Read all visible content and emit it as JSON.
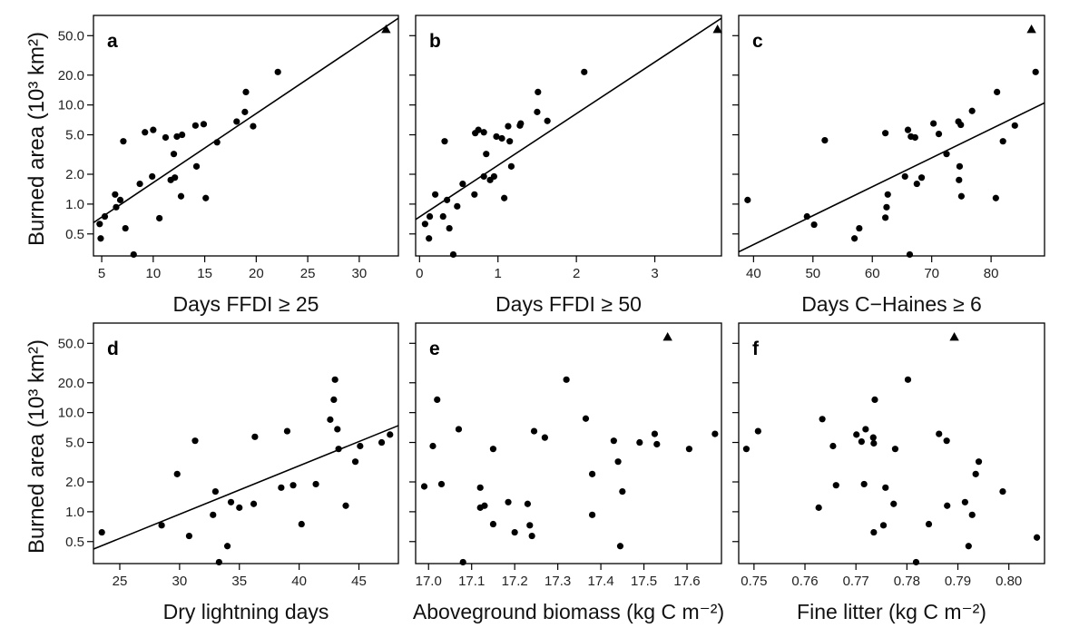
{
  "figure": {
    "y_axis_label": "Burned area (10³ km²)",
    "y_scale": "log",
    "y_ticks": [
      0.5,
      1.0,
      2.0,
      5.0,
      10.0,
      20.0,
      50.0
    ],
    "y_tick_labels": [
      "0.5",
      "1.0",
      "2.0",
      "5.0",
      "10.0",
      "20.0",
      "50.0"
    ]
  },
  "chart_data": [
    {
      "panel": "a",
      "type": "scatter",
      "xlabel": "Days FFDI ≥ 25",
      "xlim": [
        4.2,
        33.8
      ],
      "ylim": [
        0.3,
        80
      ],
      "xticks": [
        5,
        10,
        15,
        20,
        25,
        30
      ],
      "xtick_labels": [
        "5",
        "10",
        "15",
        "20",
        "25",
        "30"
      ],
      "regression": [
        [
          4.2,
          0.65
        ],
        [
          33.8,
          75
        ]
      ],
      "outlier": [
        32.6,
        58
      ],
      "points": [
        [
          4.8,
          0.63
        ],
        [
          4.9,
          0.45
        ],
        [
          5.3,
          0.75
        ],
        [
          6.3,
          1.25
        ],
        [
          6.4,
          0.93
        ],
        [
          6.8,
          1.1
        ],
        [
          7.1,
          4.3
        ],
        [
          7.3,
          0.57
        ],
        [
          8.1,
          0.31
        ],
        [
          8.7,
          1.6
        ],
        [
          9.2,
          5.3
        ],
        [
          9.9,
          1.9
        ],
        [
          10.0,
          5.6
        ],
        [
          10.6,
          0.72
        ],
        [
          11.2,
          4.7
        ],
        [
          11.7,
          1.75
        ],
        [
          12.1,
          1.85
        ],
        [
          12.0,
          3.2
        ],
        [
          12.3,
          4.8
        ],
        [
          12.7,
          1.2
        ],
        [
          12.8,
          5.0
        ],
        [
          14.1,
          6.2
        ],
        [
          14.2,
          2.4
        ],
        [
          14.9,
          6.4
        ],
        [
          15.1,
          1.15
        ],
        [
          16.2,
          4.2
        ],
        [
          18.1,
          6.8
        ],
        [
          18.9,
          8.5
        ],
        [
          19.0,
          13.5
        ],
        [
          19.7,
          6.1
        ],
        [
          22.1,
          21.5
        ]
      ]
    },
    {
      "panel": "b",
      "type": "scatter",
      "xlabel": "Days FFDI ≥ 50",
      "xlim": [
        -0.05,
        3.85
      ],
      "ylim": [
        0.3,
        80
      ],
      "xticks": [
        0,
        1,
        2,
        3
      ],
      "xtick_labels": [
        "0",
        "1",
        "2",
        "3"
      ],
      "regression": [
        [
          -0.05,
          0.7
        ],
        [
          3.85,
          75
        ]
      ],
      "outlier": [
        3.8,
        58
      ],
      "points": [
        [
          0.07,
          0.63
        ],
        [
          0.12,
          0.45
        ],
        [
          0.13,
          0.75
        ],
        [
          0.2,
          1.25
        ],
        [
          0.3,
          0.75
        ],
        [
          0.32,
          4.3
        ],
        [
          0.35,
          1.1
        ],
        [
          0.38,
          0.57
        ],
        [
          0.43,
          0.31
        ],
        [
          0.48,
          0.95
        ],
        [
          0.55,
          1.6
        ],
        [
          0.7,
          1.25
        ],
        [
          0.71,
          5.2
        ],
        [
          0.75,
          5.6
        ],
        [
          0.82,
          5.3
        ],
        [
          0.82,
          1.9
        ],
        [
          0.85,
          3.2
        ],
        [
          0.9,
          1.75
        ],
        [
          0.95,
          1.9
        ],
        [
          0.98,
          4.8
        ],
        [
          1.05,
          4.6
        ],
        [
          1.08,
          1.15
        ],
        [
          1.13,
          6.1
        ],
        [
          1.15,
          4.3
        ],
        [
          1.17,
          2.4
        ],
        [
          1.28,
          6.2
        ],
        [
          1.29,
          6.5
        ],
        [
          1.5,
          8.5
        ],
        [
          1.51,
          13.5
        ],
        [
          1.63,
          6.9
        ],
        [
          2.1,
          21.5
        ]
      ]
    },
    {
      "panel": "c",
      "type": "scatter",
      "xlabel": "Days C−Haines ≥ 6",
      "xlim": [
        37.5,
        89
      ],
      "ylim": [
        0.3,
        80
      ],
      "xticks": [
        40,
        50,
        60,
        70,
        80
      ],
      "xtick_labels": [
        "40",
        "50",
        "60",
        "70",
        "80"
      ],
      "regression": [
        [
          37.5,
          0.33
        ],
        [
          89,
          10.5
        ]
      ],
      "outlier": [
        86.8,
        58
      ],
      "points": [
        [
          39.0,
          1.1
        ],
        [
          49.0,
          0.75
        ],
        [
          50.2,
          0.62
        ],
        [
          52.0,
          4.4
        ],
        [
          57.0,
          0.45
        ],
        [
          57.8,
          0.57
        ],
        [
          62.2,
          5.2
        ],
        [
          62.2,
          0.73
        ],
        [
          62.4,
          0.93
        ],
        [
          62.6,
          1.25
        ],
        [
          65.5,
          1.9
        ],
        [
          66.0,
          5.6
        ],
        [
          66.3,
          0.31
        ],
        [
          66.5,
          4.8
        ],
        [
          67.2,
          4.7
        ],
        [
          67.5,
          1.6
        ],
        [
          68.3,
          1.85
        ],
        [
          70.3,
          6.5
        ],
        [
          71.2,
          5.1
        ],
        [
          72.5,
          3.2
        ],
        [
          74.7,
          2.4
        ],
        [
          74.5,
          6.8
        ],
        [
          74.6,
          1.75
        ],
        [
          74.9,
          6.3
        ],
        [
          75.0,
          1.2
        ],
        [
          76.8,
          8.7
        ],
        [
          80.8,
          1.15
        ],
        [
          81.0,
          13.5
        ],
        [
          82.0,
          4.3
        ],
        [
          84.0,
          6.2
        ],
        [
          87.5,
          21.5
        ]
      ]
    },
    {
      "panel": "d",
      "type": "scatter",
      "xlabel": "Dry lightning days",
      "xlim": [
        22.8,
        48.3
      ],
      "ylim": [
        0.3,
        80
      ],
      "xticks": [
        25,
        30,
        35,
        40,
        45
      ],
      "xtick_labels": [
        "25",
        "30",
        "35",
        "40",
        "45"
      ],
      "regression": [
        [
          22.8,
          0.42
        ],
        [
          48.3,
          7.4
        ]
      ],
      "outlier": null,
      "points": [
        [
          23.5,
          0.62
        ],
        [
          28.5,
          0.73
        ],
        [
          29.8,
          2.4
        ],
        [
          30.8,
          0.57
        ],
        [
          31.3,
          5.2
        ],
        [
          32.8,
          0.93
        ],
        [
          33.0,
          1.6
        ],
        [
          33.3,
          0.31
        ],
        [
          34.0,
          0.45
        ],
        [
          34.3,
          1.25
        ],
        [
          35.0,
          1.1
        ],
        [
          36.2,
          1.2
        ],
        [
          36.3,
          5.7
        ],
        [
          38.5,
          1.75
        ],
        [
          39.0,
          6.5
        ],
        [
          39.5,
          1.85
        ],
        [
          40.2,
          0.75
        ],
        [
          41.4,
          1.9
        ],
        [
          42.6,
          8.5
        ],
        [
          42.9,
          13.5
        ],
        [
          43.0,
          21.5
        ],
        [
          43.2,
          6.8
        ],
        [
          43.3,
          4.3
        ],
        [
          43.9,
          1.15
        ],
        [
          44.7,
          3.2
        ],
        [
          45.1,
          4.6
        ],
        [
          46.9,
          5.0
        ],
        [
          47.6,
          6.0
        ]
      ]
    },
    {
      "panel": "e",
      "type": "scatter",
      "xlabel": "Aboveground biomass (kg C m⁻²)",
      "xlim": [
        16.97,
        17.68
      ],
      "ylim": [
        0.3,
        80
      ],
      "xticks": [
        17.0,
        17.1,
        17.2,
        17.3,
        17.4,
        17.5,
        17.6
      ],
      "xtick_labels": [
        "17.0",
        "17.1",
        "17.2",
        "17.3",
        "17.4",
        "17.5",
        "17.6"
      ],
      "regression": null,
      "outlier": [
        17.555,
        58
      ],
      "points": [
        [
          16.99,
          1.8
        ],
        [
          17.01,
          4.6
        ],
        [
          17.02,
          13.5
        ],
        [
          17.03,
          1.9
        ],
        [
          17.07,
          6.8
        ],
        [
          17.08,
          0.31
        ],
        [
          17.12,
          1.75
        ],
        [
          17.12,
          1.1
        ],
        [
          17.13,
          1.15
        ],
        [
          17.15,
          4.3
        ],
        [
          17.15,
          0.75
        ],
        [
          17.185,
          1.25
        ],
        [
          17.2,
          0.62
        ],
        [
          17.23,
          1.2
        ],
        [
          17.235,
          0.73
        ],
        [
          17.24,
          0.57
        ],
        [
          17.245,
          6.5
        ],
        [
          17.27,
          5.6
        ],
        [
          17.32,
          21.5
        ],
        [
          17.365,
          8.7
        ],
        [
          17.38,
          2.4
        ],
        [
          17.38,
          0.93
        ],
        [
          17.43,
          5.2
        ],
        [
          17.44,
          3.2
        ],
        [
          17.445,
          0.45
        ],
        [
          17.45,
          1.6
        ],
        [
          17.49,
          5.0
        ],
        [
          17.525,
          6.1
        ],
        [
          17.53,
          4.8
        ],
        [
          17.605,
          4.3
        ],
        [
          17.665,
          6.1
        ]
      ]
    },
    {
      "panel": "f",
      "type": "scatter",
      "xlabel": "Fine litter (kg C m⁻²)",
      "xlim": [
        0.747,
        0.807
      ],
      "ylim": [
        0.3,
        80
      ],
      "xticks": [
        0.75,
        0.76,
        0.77,
        0.78,
        0.79,
        0.8
      ],
      "xtick_labels": [
        "0.75",
        "0.76",
        "0.77",
        "0.78",
        "0.79",
        "0.80"
      ],
      "regression": null,
      "outlier": [
        0.7893,
        58
      ],
      "points": [
        [
          0.7485,
          4.3
        ],
        [
          0.7508,
          6.5
        ],
        [
          0.7627,
          1.1
        ],
        [
          0.7634,
          8.6
        ],
        [
          0.7655,
          4.6
        ],
        [
          0.7661,
          1.85
        ],
        [
          0.7701,
          6.0
        ],
        [
          0.7711,
          5.1
        ],
        [
          0.7716,
          1.9
        ],
        [
          0.7719,
          6.8
        ],
        [
          0.7735,
          0.62
        ],
        [
          0.7734,
          5.6
        ],
        [
          0.7735,
          4.9
        ],
        [
          0.7737,
          13.5
        ],
        [
          0.7754,
          0.73
        ],
        [
          0.7758,
          1.75
        ],
        [
          0.7774,
          1.2
        ],
        [
          0.7777,
          4.3
        ],
        [
          0.7802,
          21.5
        ],
        [
          0.7818,
          0.31
        ],
        [
          0.7863,
          6.1
        ],
        [
          0.7878,
          5.2
        ],
        [
          0.7879,
          1.15
        ],
        [
          0.7843,
          0.75
        ],
        [
          0.7914,
          1.25
        ],
        [
          0.7921,
          0.45
        ],
        [
          0.7928,
          0.93
        ],
        [
          0.7935,
          2.4
        ],
        [
          0.7941,
          3.2
        ],
        [
          0.7988,
          1.6
        ],
        [
          0.8055,
          0.55
        ]
      ]
    }
  ]
}
